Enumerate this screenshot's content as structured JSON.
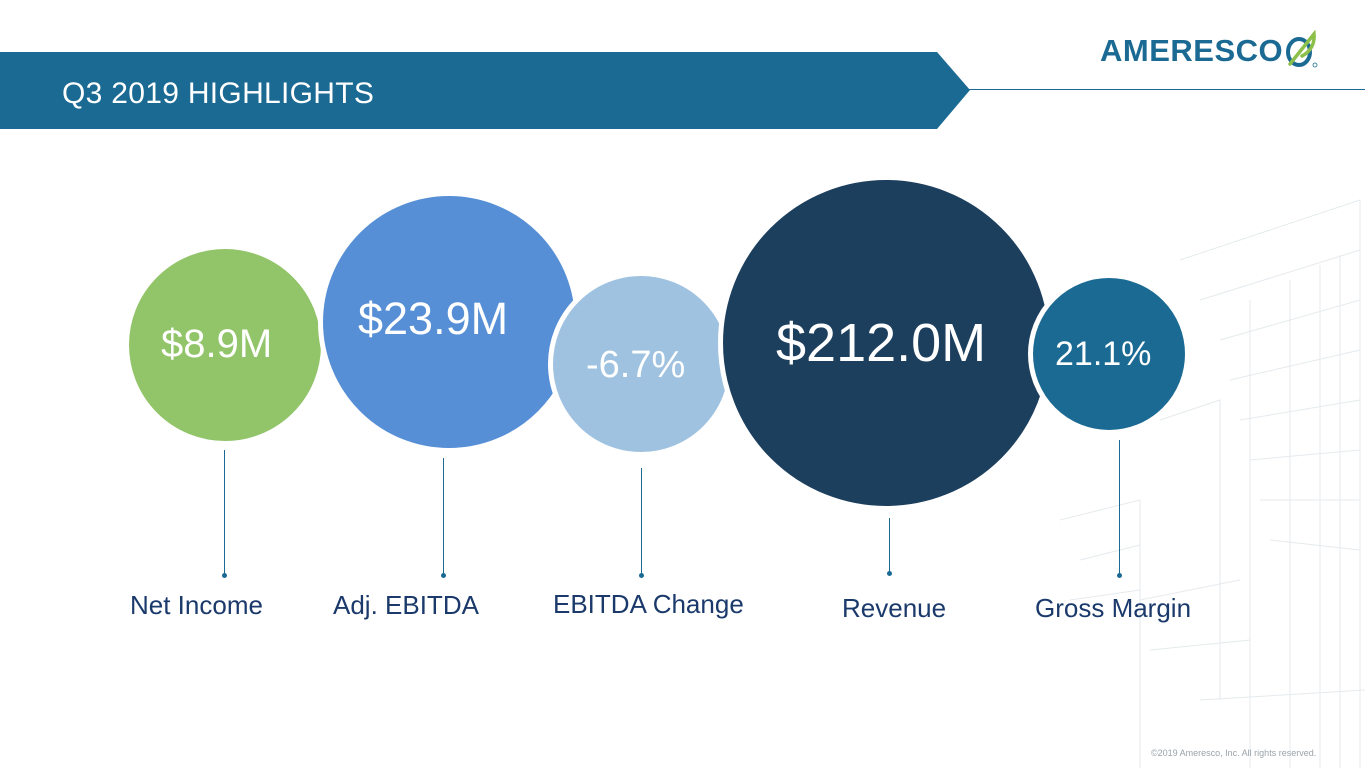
{
  "header": {
    "title": "Q3 2019 HIGHLIGHTS",
    "logo_text": "AMERESCO",
    "logo_icon": "ameresco-leaf-icon"
  },
  "metrics": [
    {
      "label": "Net Income",
      "value": "$8.9M",
      "color": "#92c56a"
    },
    {
      "label": "Adj. EBITDA",
      "value": "$23.9M",
      "color": "#568fd6"
    },
    {
      "label": "EBITDA Change",
      "value": "-6.7%",
      "color": "#9fc2e0"
    },
    {
      "label": "Revenue",
      "value": "$212.0M",
      "color": "#1d3f5e"
    },
    {
      "label": "Gross Margin",
      "value": "21.1%",
      "color": "#1b6a93"
    }
  ],
  "footer": {
    "copyright": "©2019 Ameresco, Inc. All rights reserved."
  },
  "colors": {
    "banner": "#1b6a93",
    "label_text": "#1b3a6b",
    "accent": "#1b6a93"
  }
}
